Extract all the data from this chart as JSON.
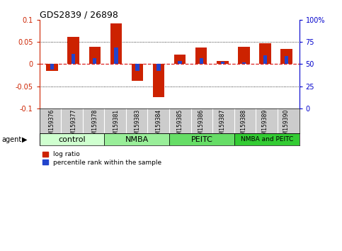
{
  "title": "GDS2839 / 26898",
  "samples": [
    "GSM159376",
    "GSM159377",
    "GSM159378",
    "GSM159381",
    "GSM159383",
    "GSM159384",
    "GSM159385",
    "GSM159386",
    "GSM159387",
    "GSM159388",
    "GSM159389",
    "GSM159390"
  ],
  "log_ratio": [
    -0.015,
    0.062,
    0.04,
    0.092,
    -0.038,
    -0.075,
    0.022,
    0.038,
    0.007,
    0.04,
    0.047,
    0.035
  ],
  "percentile": [
    44,
    62,
    57,
    69,
    42,
    42,
    54,
    57,
    53,
    52,
    60,
    59
  ],
  "groups": [
    {
      "label": "control",
      "color": "#cfffcf",
      "start": 0,
      "end": 3
    },
    {
      "label": "NMBA",
      "color": "#99ee99",
      "start": 3,
      "end": 6
    },
    {
      "label": "PEITC",
      "color": "#66dd66",
      "start": 6,
      "end": 9
    },
    {
      "label": "NMBA and PEITC",
      "color": "#33cc33",
      "start": 9,
      "end": 12
    }
  ],
  "ylim": [
    -0.1,
    0.1
  ],
  "right_ylim": [
    0,
    100
  ],
  "bar_width": 0.55,
  "blue_bar_width": 0.18,
  "bar_color_red": "#cc2200",
  "bar_color_blue": "#2244cc",
  "zero_line_color": "#dd2222",
  "background_color": "#ffffff",
  "plot_bg_color": "#ffffff",
  "label_color_left": "#cc2200",
  "label_color_right": "#0000cc",
  "label_bg_color": "#cccccc"
}
